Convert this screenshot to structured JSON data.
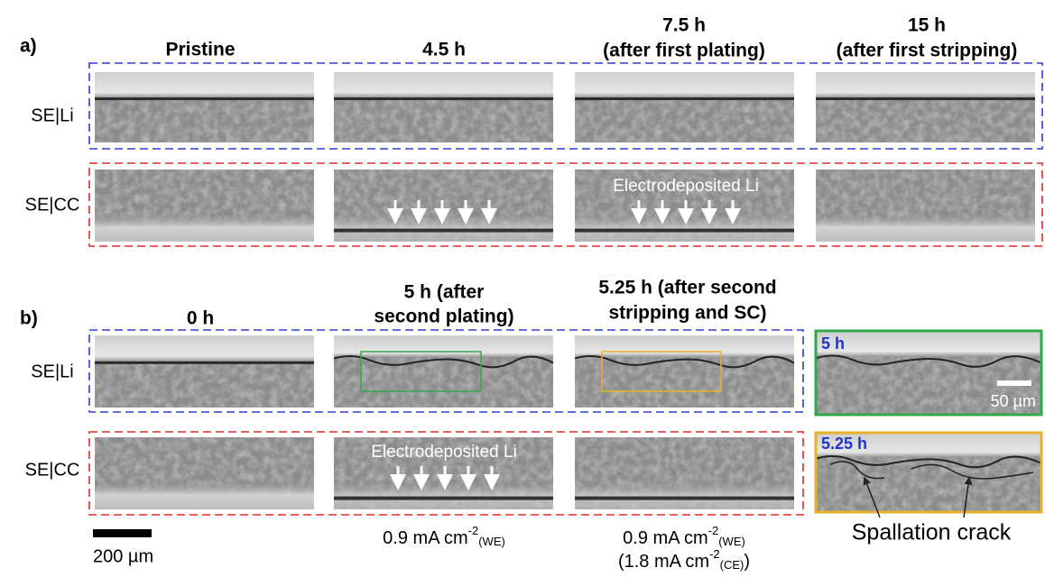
{
  "panel_a": {
    "label": "a)",
    "columns": [
      [
        "Pristine"
      ],
      [
        "4.5 h"
      ],
      [
        "7.5 h",
        "(after first plating)"
      ],
      [
        "15 h",
        "(after first stripping)"
      ]
    ],
    "rows": [
      "SE|Li",
      "SE|CC"
    ],
    "annotation": "Electrodeposited Li"
  },
  "panel_b": {
    "label": "b)",
    "columns": [
      [
        "0 h"
      ],
      [
        "5 h (after",
        "second plating)"
      ],
      [
        "5.25 h (after second",
        "stripping and SC)"
      ]
    ],
    "rows": [
      "SE|Li",
      "SE|CC"
    ],
    "annotation": "Electrodeposited Li",
    "current_densities": [
      {
        "main": "0.9 mA cm",
        "sup": "-2",
        "sub": "(WE)"
      },
      {
        "main": "0.9 mA cm",
        "sup": "-2",
        "sub": "(WE)",
        "line2": {
          "main": "(1.8 mA cm",
          "sup": "-2",
          "sub": "(CE)",
          "end": ")"
        }
      }
    ],
    "insets": [
      {
        "label": "5 h",
        "scale_bar": "50 µm"
      },
      {
        "label": "5.25 h",
        "annotation": "Spallation crack"
      }
    ]
  },
  "scale_bar": "200 µm"
}
